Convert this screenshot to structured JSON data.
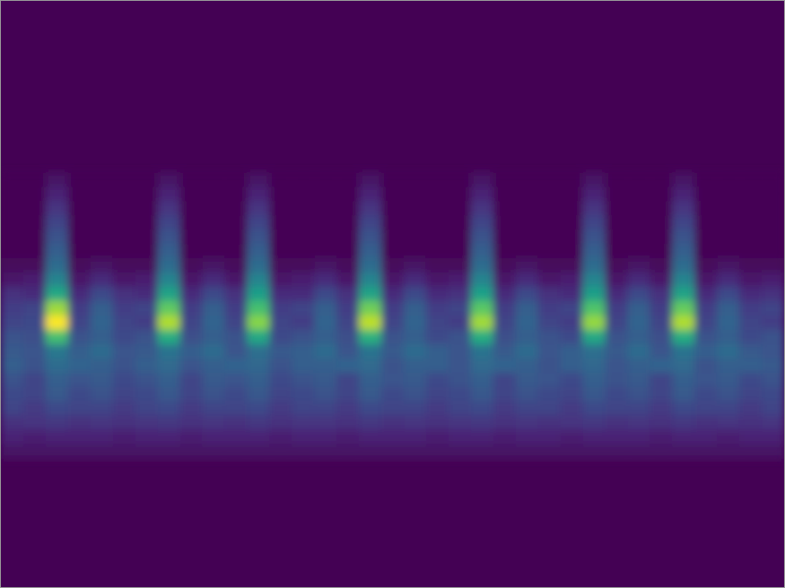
{
  "chart_data": {
    "type": "heatmap",
    "tick_labels": false,
    "xlim": [
      0,
      35
    ],
    "ylim": [
      0,
      41
    ],
    "zlim": [
      0,
      1
    ],
    "x": [
      0,
      1,
      2,
      3,
      4,
      5,
      6,
      7,
      8,
      9,
      10,
      11,
      12,
      13,
      14,
      15,
      16,
      17,
      18,
      19,
      20,
      21,
      22,
      23,
      24,
      25,
      26,
      27,
      28,
      29,
      30,
      31,
      32,
      33,
      34
    ],
    "y": [
      12,
      13,
      14,
      15,
      16,
      17,
      18,
      19,
      20,
      21,
      22,
      23,
      24,
      25,
      26,
      27,
      28,
      29,
      30,
      31
    ],
    "z": [
      [
        0,
        0,
        0.05,
        0,
        0,
        0,
        0,
        0.05,
        0,
        0,
        0,
        0.05,
        0,
        0,
        0,
        0,
        0.05,
        0,
        0,
        0,
        0,
        0.05,
        0,
        0,
        0,
        0,
        0.05,
        0,
        0,
        0,
        0.05,
        0,
        0,
        0,
        0
      ],
      [
        0,
        0,
        0.1,
        0,
        0,
        0,
        0,
        0.1,
        0,
        0,
        0,
        0.1,
        0,
        0,
        0,
        0,
        0.1,
        0,
        0,
        0,
        0,
        0.1,
        0,
        0,
        0,
        0,
        0.1,
        0,
        0,
        0,
        0.1,
        0,
        0,
        0,
        0
      ],
      [
        0,
        0,
        0.15,
        0,
        0,
        0,
        0,
        0.15,
        0,
        0,
        0,
        0.15,
        0,
        0,
        0,
        0,
        0.15,
        0,
        0,
        0,
        0,
        0.15,
        0,
        0,
        0,
        0,
        0.15,
        0,
        0,
        0,
        0.15,
        0,
        0,
        0,
        0
      ],
      [
        0,
        0,
        0.2,
        0,
        0,
        0,
        0,
        0.2,
        0,
        0,
        0,
        0.2,
        0,
        0,
        0,
        0,
        0.2,
        0,
        0,
        0,
        0,
        0.2,
        0,
        0,
        0,
        0,
        0.2,
        0,
        0,
        0,
        0.2,
        0,
        0,
        0,
        0
      ],
      [
        0,
        0,
        0.25,
        0,
        0,
        0,
        0,
        0.25,
        0,
        0,
        0,
        0.25,
        0,
        0,
        0,
        0,
        0.25,
        0,
        0,
        0,
        0,
        0.25,
        0,
        0,
        0,
        0,
        0.25,
        0,
        0,
        0,
        0.25,
        0,
        0,
        0,
        0
      ],
      [
        0,
        0,
        0.3,
        0,
        0,
        0,
        0,
        0.3,
        0,
        0,
        0,
        0.3,
        0,
        0,
        0,
        0,
        0.3,
        0,
        0,
        0,
        0,
        0.3,
        0,
        0,
        0,
        0,
        0.3,
        0,
        0,
        0,
        0.3,
        0,
        0,
        0,
        0
      ],
      [
        0.02,
        0.02,
        0.35,
        0.02,
        0.05,
        0.02,
        0.02,
        0.35,
        0.02,
        0.05,
        0.02,
        0.35,
        0.02,
        0.02,
        0.05,
        0.02,
        0.35,
        0.02,
        0.05,
        0.02,
        0.02,
        0.35,
        0.02,
        0.05,
        0.02,
        0.02,
        0.35,
        0.02,
        0.05,
        0.02,
        0.35,
        0.02,
        0.05,
        0.02,
        0.02
      ],
      [
        0.06,
        0.08,
        0.45,
        0.06,
        0.12,
        0.06,
        0.08,
        0.45,
        0.06,
        0.12,
        0.06,
        0.45,
        0.06,
        0.08,
        0.12,
        0.06,
        0.45,
        0.06,
        0.12,
        0.06,
        0.08,
        0.45,
        0.06,
        0.12,
        0.06,
        0.08,
        0.45,
        0.06,
        0.12,
        0.06,
        0.45,
        0.06,
        0.12,
        0.06,
        0.08
      ],
      [
        0.14,
        0.12,
        0.6,
        0.12,
        0.22,
        0.14,
        0.12,
        0.58,
        0.12,
        0.22,
        0.14,
        0.56,
        0.12,
        0.12,
        0.22,
        0.14,
        0.58,
        0.12,
        0.22,
        0.12,
        0.14,
        0.57,
        0.12,
        0.22,
        0.14,
        0.12,
        0.56,
        0.12,
        0.22,
        0.14,
        0.58,
        0.12,
        0.22,
        0.12,
        0.14
      ],
      [
        0.18,
        0.2,
        0.85,
        0.18,
        0.3,
        0.18,
        0.2,
        0.75,
        0.18,
        0.3,
        0.18,
        0.7,
        0.18,
        0.2,
        0.3,
        0.18,
        0.78,
        0.18,
        0.3,
        0.18,
        0.2,
        0.74,
        0.18,
        0.3,
        0.18,
        0.2,
        0.72,
        0.18,
        0.3,
        0.18,
        0.76,
        0.18,
        0.3,
        0.18,
        0.2
      ],
      [
        0.2,
        0.22,
        1,
        0.2,
        0.32,
        0.2,
        0.18,
        0.88,
        0.2,
        0.32,
        0.2,
        0.82,
        0.2,
        0.18,
        0.32,
        0.2,
        0.9,
        0.2,
        0.32,
        0.2,
        0.18,
        0.86,
        0.2,
        0.32,
        0.2,
        0.18,
        0.84,
        0.2,
        0.32,
        0.2,
        0.88,
        0.2,
        0.32,
        0.2,
        0.18
      ],
      [
        0.25,
        0.24,
        0.7,
        0.25,
        0.3,
        0.22,
        0.25,
        0.62,
        0.24,
        0.3,
        0.25,
        0.6,
        0.22,
        0.25,
        0.3,
        0.24,
        0.64,
        0.25,
        0.3,
        0.22,
        0.25,
        0.62,
        0.24,
        0.3,
        0.25,
        0.22,
        0.6,
        0.25,
        0.3,
        0.24,
        0.62,
        0.25,
        0.3,
        0.22,
        0.25
      ],
      [
        0.28,
        0.26,
        0.4,
        0.3,
        0.35,
        0.26,
        0.28,
        0.38,
        0.3,
        0.35,
        0.26,
        0.36,
        0.28,
        0.3,
        0.35,
        0.26,
        0.38,
        0.28,
        0.35,
        0.3,
        0.26,
        0.38,
        0.28,
        0.35,
        0.26,
        0.3,
        0.36,
        0.28,
        0.35,
        0.26,
        0.38,
        0.3,
        0.35,
        0.28,
        0.26
      ],
      [
        0.3,
        0.25,
        0.35,
        0.32,
        0.3,
        0.25,
        0.3,
        0.34,
        0.26,
        0.3,
        0.32,
        0.33,
        0.25,
        0.3,
        0.3,
        0.32,
        0.34,
        0.25,
        0.3,
        0.3,
        0.26,
        0.34,
        0.32,
        0.3,
        0.25,
        0.3,
        0.33,
        0.26,
        0.3,
        0.32,
        0.34,
        0.25,
        0.3,
        0.3,
        0.28
      ],
      [
        0.25,
        0.2,
        0.3,
        0.26,
        0.28,
        0.22,
        0.25,
        0.3,
        0.2,
        0.28,
        0.26,
        0.3,
        0.22,
        0.25,
        0.28,
        0.2,
        0.3,
        0.26,
        0.28,
        0.22,
        0.25,
        0.3,
        0.2,
        0.28,
        0.26,
        0.22,
        0.3,
        0.25,
        0.28,
        0.2,
        0.3,
        0.26,
        0.28,
        0.22,
        0.25
      ],
      [
        0.22,
        0.2,
        0.28,
        0.22,
        0.25,
        0.2,
        0.22,
        0.27,
        0.2,
        0.25,
        0.22,
        0.27,
        0.2,
        0.22,
        0.25,
        0.2,
        0.28,
        0.22,
        0.25,
        0.2,
        0.22,
        0.27,
        0.2,
        0.25,
        0.22,
        0.2,
        0.27,
        0.22,
        0.25,
        0.2,
        0.28,
        0.22,
        0.25,
        0.2,
        0.22
      ],
      [
        0.2,
        0.17,
        0.22,
        0.2,
        0.2,
        0.17,
        0.2,
        0.22,
        0.17,
        0.2,
        0.2,
        0.22,
        0.17,
        0.2,
        0.2,
        0.17,
        0.22,
        0.2,
        0.2,
        0.17,
        0.2,
        0.22,
        0.17,
        0.2,
        0.2,
        0.17,
        0.22,
        0.2,
        0.2,
        0.17,
        0.22,
        0.2,
        0.2,
        0.17,
        0.2
      ],
      [
        0.14,
        0.15,
        0.16,
        0.14,
        0.15,
        0.14,
        0.15,
        0.16,
        0.14,
        0.15,
        0.14,
        0.16,
        0.14,
        0.15,
        0.15,
        0.14,
        0.16,
        0.14,
        0.15,
        0.14,
        0.15,
        0.16,
        0.14,
        0.15,
        0.14,
        0.15,
        0.16,
        0.14,
        0.15,
        0.14,
        0.16,
        0.14,
        0.15,
        0.14,
        0.15
      ],
      [
        0.1,
        0.08,
        0.1,
        0.1,
        0.1,
        0.08,
        0.1,
        0.1,
        0.08,
        0.1,
        0.1,
        0.1,
        0.08,
        0.1,
        0.1,
        0.08,
        0.1,
        0.1,
        0.1,
        0.08,
        0.1,
        0.1,
        0.08,
        0.1,
        0.1,
        0.08,
        0.1,
        0.1,
        0.1,
        0.08,
        0.1,
        0.1,
        0.08,
        0.1,
        0.1
      ],
      [
        0.05,
        0.05,
        0.05,
        0.05,
        0.05,
        0.05,
        0.05,
        0.05,
        0.05,
        0.05,
        0.05,
        0.05,
        0.05,
        0.05,
        0.05,
        0.05,
        0.05,
        0.05,
        0.05,
        0.05,
        0.05,
        0.05,
        0.05,
        0.05,
        0.05,
        0.05,
        0.05,
        0.05,
        0.05,
        0.05,
        0.05,
        0.05,
        0.05,
        0.05,
        0.05
      ]
    ]
  }
}
